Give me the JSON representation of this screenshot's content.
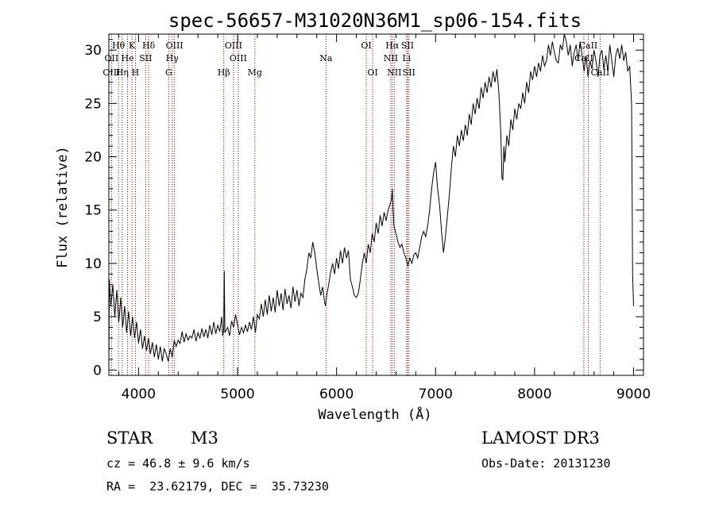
{
  "chart_data": {
    "type": "line",
    "title": "spec-56657-M31020N36M1_sp06-154.fits",
    "xlabel": "Wavelength (Å)",
    "ylabel": "Flux (relative)",
    "xlim": [
      3700,
      9100
    ],
    "ylim": [
      -0.5,
      31.5
    ],
    "xticks": [
      4000,
      5000,
      6000,
      7000,
      8000,
      9000
    ],
    "yticks": [
      0,
      5,
      10,
      15,
      20,
      25,
      30
    ],
    "spectrum": [
      [
        3700,
        0
      ],
      [
        3705,
        8.5
      ],
      [
        3720,
        6.0
      ],
      [
        3740,
        8.0
      ],
      [
        3760,
        5.0
      ],
      [
        3780,
        7.5
      ],
      [
        3800,
        4.5
      ],
      [
        3820,
        6.8
      ],
      [
        3840,
        4.0
      ],
      [
        3860,
        6.0
      ],
      [
        3880,
        3.5
      ],
      [
        3900,
        5.5
      ],
      [
        3920,
        3.2
      ],
      [
        3940,
        5.0
      ],
      [
        3960,
        3.0
      ],
      [
        3980,
        4.5
      ],
      [
        4000,
        2.5
      ],
      [
        4020,
        3.8
      ],
      [
        4040,
        2.0
      ],
      [
        4060,
        3.2
      ],
      [
        4080,
        1.8
      ],
      [
        4100,
        3.0
      ],
      [
        4120,
        1.5
      ],
      [
        4140,
        2.6
      ],
      [
        4160,
        1.2
      ],
      [
        4180,
        2.4
      ],
      [
        4200,
        1.0
      ],
      [
        4220,
        2.2
      ],
      [
        4240,
        0.8
      ],
      [
        4260,
        2.0
      ],
      [
        4280,
        1.5
      ],
      [
        4300,
        0.8
      ],
      [
        4320,
        2.0
      ],
      [
        4340,
        1.2
      ],
      [
        4360,
        2.8
      ],
      [
        4380,
        2.2
      ],
      [
        4400,
        2.8
      ],
      [
        4420,
        2.5
      ],
      [
        4440,
        3.6
      ],
      [
        4460,
        2.6
      ],
      [
        4480,
        3.4
      ],
      [
        4500,
        2.8
      ],
      [
        4520,
        3.2
      ],
      [
        4540,
        3.0
      ],
      [
        4560,
        3.8
      ],
      [
        4580,
        2.7
      ],
      [
        4600,
        3.5
      ],
      [
        4620,
        3.0
      ],
      [
        4640,
        3.9
      ],
      [
        4660,
        3.1
      ],
      [
        4680,
        3.8
      ],
      [
        4700,
        3.0
      ],
      [
        4720,
        4.2
      ],
      [
        4740,
        3.3
      ],
      [
        4760,
        4.5
      ],
      [
        4780,
        3.4
      ],
      [
        4800,
        4.2
      ],
      [
        4820,
        3.6
      ],
      [
        4840,
        5.0
      ],
      [
        4850,
        3.2
      ],
      [
        4860,
        3.9
      ],
      [
        4866,
        9.3
      ],
      [
        4872,
        3.5
      ],
      [
        4900,
        4.0
      ],
      [
        4920,
        3.2
      ],
      [
        4940,
        4.6
      ],
      [
        4960,
        4.0
      ],
      [
        4980,
        5.2
      ],
      [
        5000,
        4.2
      ],
      [
        5020,
        3.3
      ],
      [
        5040,
        4.0
      ],
      [
        5060,
        3.5
      ],
      [
        5080,
        4.2
      ],
      [
        5100,
        3.6
      ],
      [
        5120,
        4.5
      ],
      [
        5140,
        3.8
      ],
      [
        5160,
        5.0
      ],
      [
        5180,
        3.5
      ],
      [
        5200,
        5.2
      ],
      [
        5220,
        4.8
      ],
      [
        5240,
        6.2
      ],
      [
        5260,
        5.0
      ],
      [
        5280,
        6.6
      ],
      [
        5300,
        5.2
      ],
      [
        5320,
        7.0
      ],
      [
        5340,
        5.5
      ],
      [
        5360,
        6.8
      ],
      [
        5380,
        5.4
      ],
      [
        5400,
        7.5
      ],
      [
        5420,
        6.0
      ],
      [
        5440,
        7.2
      ],
      [
        5460,
        5.6
      ],
      [
        5480,
        7.6
      ],
      [
        5500,
        6.2
      ],
      [
        5520,
        7.0
      ],
      [
        5540,
        5.8
      ],
      [
        5560,
        7.8
      ],
      [
        5580,
        6.4
      ],
      [
        5600,
        7.5
      ],
      [
        5620,
        6.0
      ],
      [
        5640,
        7.2
      ],
      [
        5660,
        6.8
      ],
      [
        5680,
        8.5
      ],
      [
        5700,
        9.5
      ],
      [
        5720,
        11.0
      ],
      [
        5740,
        10.5
      ],
      [
        5760,
        12.0
      ],
      [
        5780,
        11.0
      ],
      [
        5800,
        9.5
      ],
      [
        5820,
        8.2
      ],
      [
        5840,
        7.0
      ],
      [
        5860,
        7.8
      ],
      [
        5880,
        6.3
      ],
      [
        5890,
        6.0
      ],
      [
        5900,
        7.0
      ],
      [
        5920,
        8.0
      ],
      [
        5940,
        9.2
      ],
      [
        5960,
        10.0
      ],
      [
        5980,
        9.0
      ],
      [
        6000,
        10.5
      ],
      [
        6020,
        9.5
      ],
      [
        6040,
        11.2
      ],
      [
        6060,
        10.0
      ],
      [
        6080,
        11.5
      ],
      [
        6100,
        10.5
      ],
      [
        6120,
        11.2
      ],
      [
        6140,
        8.5
      ],
      [
        6160,
        7.8
      ],
      [
        6180,
        7.0
      ],
      [
        6200,
        6.8
      ],
      [
        6220,
        7.2
      ],
      [
        6240,
        8.5
      ],
      [
        6260,
        10.0
      ],
      [
        6280,
        11.0
      ],
      [
        6300,
        10.0
      ],
      [
        6320,
        11.8
      ],
      [
        6340,
        11.0
      ],
      [
        6360,
        12.8
      ],
      [
        6380,
        12.0
      ],
      [
        6400,
        13.8
      ],
      [
        6420,
        12.8
      ],
      [
        6440,
        14.5
      ],
      [
        6460,
        13.5
      ],
      [
        6480,
        14.8
      ],
      [
        6500,
        14.0
      ],
      [
        6520,
        15.0
      ],
      [
        6540,
        15.5
      ],
      [
        6555,
        16.0
      ],
      [
        6563,
        17.0
      ],
      [
        6570,
        15.2
      ],
      [
        6580,
        13.5
      ],
      [
        6600,
        12.8
      ],
      [
        6620,
        12.0
      ],
      [
        6640,
        11.5
      ],
      [
        6660,
        11.8
      ],
      [
        6680,
        11.0
      ],
      [
        6700,
        10.5
      ],
      [
        6720,
        9.8
      ],
      [
        6740,
        10.5
      ],
      [
        6760,
        10.0
      ],
      [
        6780,
        10.8
      ],
      [
        6800,
        11.0
      ],
      [
        6820,
        10.5
      ],
      [
        6840,
        11.5
      ],
      [
        6860,
        12.5
      ],
      [
        6880,
        13.0
      ],
      [
        6900,
        12.5
      ],
      [
        6920,
        13.5
      ],
      [
        6940,
        15.0
      ],
      [
        6960,
        17.0
      ],
      [
        6980,
        18.5
      ],
      [
        7000,
        19.5
      ],
      [
        7020,
        17.0
      ],
      [
        7040,
        15.5
      ],
      [
        7060,
        13.0
      ],
      [
        7080,
        11.0
      ],
      [
        7100,
        12.5
      ],
      [
        7120,
        14.5
      ],
      [
        7140,
        16.5
      ],
      [
        7160,
        19.0
      ],
      [
        7180,
        21.0
      ],
      [
        7200,
        20.0
      ],
      [
        7220,
        22.0
      ],
      [
        7240,
        21.0
      ],
      [
        7260,
        22.5
      ],
      [
        7280,
        21.5
      ],
      [
        7300,
        23.0
      ],
      [
        7320,
        22.0
      ],
      [
        7340,
        24.0
      ],
      [
        7360,
        23.0
      ],
      [
        7380,
        25.0
      ],
      [
        7400,
        24.0
      ],
      [
        7420,
        25.5
      ],
      [
        7440,
        24.5
      ],
      [
        7460,
        26.5
      ],
      [
        7480,
        25.5
      ],
      [
        7500,
        27.0
      ],
      [
        7520,
        26.0
      ],
      [
        7540,
        27.5
      ],
      [
        7560,
        26.5
      ],
      [
        7580,
        28.0
      ],
      [
        7600,
        27.0
      ],
      [
        7620,
        28.2
      ],
      [
        7640,
        26.0
      ],
      [
        7660,
        22.0
      ],
      [
        7670,
        18.0
      ],
      [
        7680,
        17.8
      ],
      [
        7690,
        21.0
      ],
      [
        7700,
        19.5
      ],
      [
        7720,
        22.0
      ],
      [
        7740,
        21.0
      ],
      [
        7760,
        23.5
      ],
      [
        7780,
        22.5
      ],
      [
        7800,
        24.5
      ],
      [
        7820,
        23.5
      ],
      [
        7840,
        25.0
      ],
      [
        7860,
        24.5
      ],
      [
        7880,
        26.0
      ],
      [
        7900,
        25.0
      ],
      [
        7920,
        27.0
      ],
      [
        7940,
        26.0
      ],
      [
        7960,
        28.0
      ],
      [
        7980,
        27.2
      ],
      [
        8000,
        28.5
      ],
      [
        8020,
        27.5
      ],
      [
        8040,
        28.8
      ],
      [
        8060,
        28.0
      ],
      [
        8080,
        29.5
      ],
      [
        8100,
        28.5
      ],
      [
        8120,
        29.0
      ],
      [
        8140,
        30.5
      ],
      [
        8160,
        29.5
      ],
      [
        8180,
        30.8
      ],
      [
        8200,
        29.8
      ],
      [
        8220,
        29.0
      ],
      [
        8240,
        28.8
      ],
      [
        8260,
        30.5
      ],
      [
        8280,
        30.0
      ],
      [
        8300,
        31.5
      ],
      [
        8320,
        30.8
      ],
      [
        8340,
        29.5
      ],
      [
        8360,
        30.5
      ],
      [
        8380,
        28.5
      ],
      [
        8400,
        29.8
      ],
      [
        8420,
        30.5
      ],
      [
        8440,
        29.0
      ],
      [
        8460,
        30.8
      ],
      [
        8480,
        29.5
      ],
      [
        8500,
        28.0
      ],
      [
        8520,
        29.5
      ],
      [
        8540,
        27.5
      ],
      [
        8560,
        29.0
      ],
      [
        8580,
        28.2
      ],
      [
        8600,
        30.0
      ],
      [
        8620,
        29.0
      ],
      [
        8640,
        27.5
      ],
      [
        8660,
        29.5
      ],
      [
        8680,
        30.0
      ],
      [
        8700,
        28.2
      ],
      [
        8720,
        29.5
      ],
      [
        8740,
        28.0
      ],
      [
        8760,
        30.5
      ],
      [
        8780,
        29.0
      ],
      [
        8800,
        27.5
      ],
      [
        8820,
        29.5
      ],
      [
        8840,
        30.2
      ],
      [
        8860,
        29.2
      ],
      [
        8880,
        30.5
      ],
      [
        8900,
        29.0
      ],
      [
        8920,
        29.8
      ],
      [
        8940,
        28.0
      ],
      [
        8960,
        28.5
      ],
      [
        8980,
        25.0
      ],
      [
        8990,
        9.0
      ],
      [
        9000,
        6.0
      ]
    ],
    "line_markers": [
      {
        "label": "Hθ",
        "wl": 3798,
        "row": 0
      },
      {
        "label": "K",
        "wl": 3934,
        "row": 0
      },
      {
        "label": "Hδ",
        "wl": 4102,
        "row": 0
      },
      {
        "label": "OIII",
        "wl": 4363,
        "row": 0
      },
      {
        "label": "OIII",
        "wl": 4959,
        "row": 0
      },
      {
        "label": "OI",
        "wl": 6300,
        "row": 0
      },
      {
        "label": "Hα",
        "wl": 6563,
        "row": 0
      },
      {
        "label": "SII",
        "wl": 6717,
        "row": 0
      },
      {
        "label": "CaII",
        "wl": 8542,
        "row": 0
      },
      {
        "label": "OII",
        "wl": 3727,
        "row": 1
      },
      {
        "label": "He",
        "wl": 3889,
        "row": 1
      },
      {
        "label": "SII",
        "wl": 4072,
        "row": 1
      },
      {
        "label": "Hγ",
        "wl": 4340,
        "row": 1
      },
      {
        "label": "OIII",
        "wl": 5007,
        "row": 1
      },
      {
        "label": "Na",
        "wl": 5893,
        "row": 1
      },
      {
        "label": "NII",
        "wl": 6548,
        "row": 1
      },
      {
        "label": "Li",
        "wl": 6708,
        "row": 1
      },
      {
        "label": "CaII",
        "wl": 8498,
        "row": 1
      },
      {
        "label": "OIII",
        "wl": 3727,
        "row": 2
      },
      {
        "label": "Hη",
        "wl": 3835,
        "row": 2
      },
      {
        "label": "H",
        "wl": 3968,
        "row": 2
      },
      {
        "label": "G",
        "wl": 4305,
        "row": 2
      },
      {
        "label": "Hβ",
        "wl": 4861,
        "row": 2
      },
      {
        "label": "Mg",
        "wl": 5175,
        "row": 2
      },
      {
        "label": "OI",
        "wl": 6364,
        "row": 2
      },
      {
        "label": "NII",
        "wl": 6583,
        "row": 2
      },
      {
        "label": "SII",
        "wl": 6731,
        "row": 2
      },
      {
        "label": "CaII",
        "wl": 8662,
        "row": 2
      }
    ],
    "marker_color": "#8b0000"
  },
  "info": {
    "object_class": "STAR",
    "subclass": "M3",
    "survey": "LAMOST DR3",
    "cz": "cz = 46.8 ± 9.6 km/s",
    "obs_date": "Obs-Date: 20131230",
    "coords": "RA =  23.62179, DEC =  35.73230"
  }
}
